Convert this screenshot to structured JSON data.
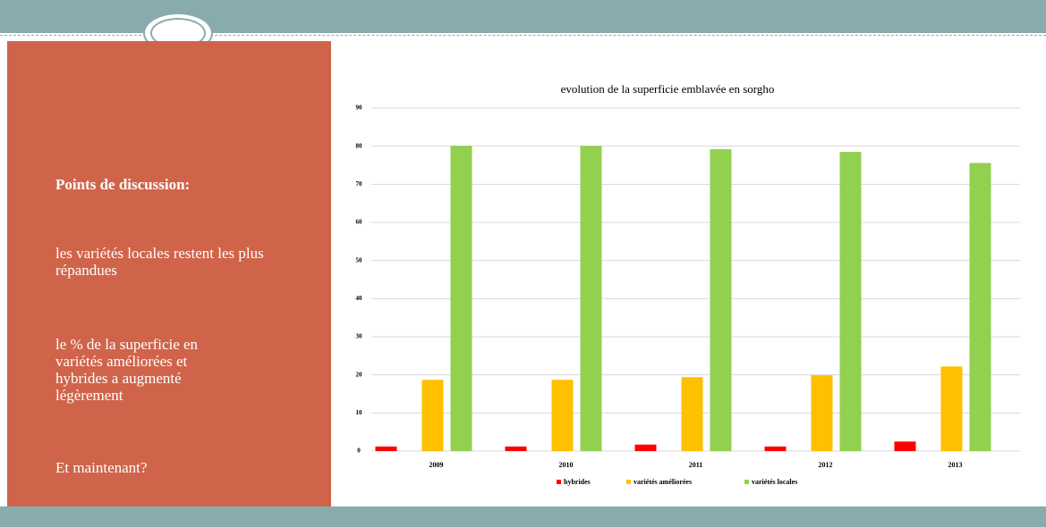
{
  "slide": {
    "heading": "Points de discussion:",
    "points": [
      "les variétés locales restent les plus répandues",
      "le % de la superficie en variétés améliorées et hybrides a augmenté légèrement",
      "Et maintenant?"
    ]
  },
  "chart_data": {
    "type": "bar",
    "title": "evolution de la superficie emblavée en sorgho",
    "categories": [
      "2009",
      "2010",
      "2011",
      "2012",
      "2013"
    ],
    "series": [
      {
        "name": "hybrides",
        "color": "#ff0000",
        "values": [
          1.2,
          1.2,
          1.7,
          1.2,
          2.5
        ]
      },
      {
        "name": "variétés améliorées",
        "color": "#ffc000",
        "values": [
          18.7,
          18.7,
          19.4,
          19.9,
          22.2
        ]
      },
      {
        "name": "variétés locales",
        "color": "#92d050",
        "values": [
          80.1,
          80.1,
          79.2,
          78.5,
          75.6
        ]
      }
    ],
    "ylim": [
      0,
      90
    ],
    "yticks": [
      0,
      10,
      20,
      30,
      40,
      50,
      60,
      70,
      80,
      90
    ],
    "grid": true,
    "legend": "bottom"
  }
}
